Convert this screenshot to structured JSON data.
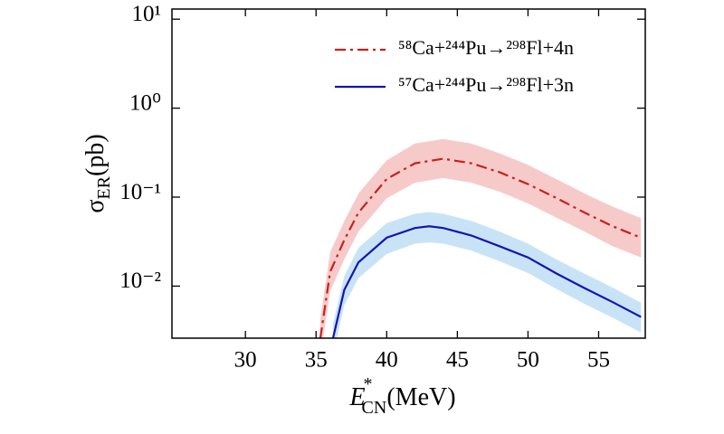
{
  "chart_data": {
    "type": "line",
    "log_y": true,
    "x_label": {
      "symbol": "E",
      "superscript": "*",
      "subscript": "CN",
      "unit": "(MeV)"
    },
    "y_label": {
      "symbol": "σ",
      "subscript": "ER",
      "unit": "(pb)"
    },
    "xlim": [
      24.8,
      58.3
    ],
    "xticks": [
      30,
      35,
      40,
      45,
      50,
      55
    ],
    "ylim": [
      0.0026,
      13
    ],
    "yticks": [
      {
        "value": 10,
        "label": "10¹"
      },
      {
        "value": 1,
        "label": "10⁰"
      },
      {
        "value": 0.1,
        "label": "10⁻¹"
      },
      {
        "value": 0.01,
        "label": "10⁻²"
      }
    ],
    "legend": "upper right",
    "series": [
      {
        "name": "⁵⁸Ca+²⁴⁴Pu→²⁹⁸Fl+4n",
        "color": "#c8201e",
        "band_color": "#f7caca",
        "linestyle": "dashdot",
        "x": [
          35.3,
          36,
          37,
          38,
          40,
          42,
          44,
          46,
          48,
          50,
          52,
          54,
          56,
          58
        ],
        "values": [
          0.0026,
          0.0145,
          0.033,
          0.067,
          0.16,
          0.24,
          0.27,
          0.24,
          0.19,
          0.14,
          0.098,
          0.067,
          0.047,
          0.035
        ],
        "band_upper": [
          0.0043,
          0.024,
          0.054,
          0.11,
          0.26,
          0.4,
          0.45,
          0.4,
          0.31,
          0.23,
          0.16,
          0.11,
          0.078,
          0.058
        ],
        "band_lower": [
          0.0016,
          0.0088,
          0.02,
          0.041,
          0.097,
          0.145,
          0.164,
          0.145,
          0.115,
          0.085,
          0.059,
          0.041,
          0.028,
          0.021
        ]
      },
      {
        "name": "⁵⁷Ca+²⁴⁴Pu→²⁹⁸Fl+3n",
        "color": "#1414b4",
        "band_color": "#c9e3f6",
        "linestyle": "solid",
        "x": [
          36.2,
          37,
          38,
          40,
          42,
          43,
          44,
          46,
          48,
          50,
          52,
          54,
          56,
          58
        ],
        "values": [
          0.0026,
          0.0091,
          0.0185,
          0.035,
          0.045,
          0.047,
          0.045,
          0.037,
          0.028,
          0.021,
          0.0139,
          0.0095,
          0.0066,
          0.0045
        ],
        "band_upper": [
          0.0038,
          0.013,
          0.027,
          0.051,
          0.065,
          0.068,
          0.065,
          0.054,
          0.041,
          0.03,
          0.02,
          0.0138,
          0.0096,
          0.0065
        ],
        "band_lower": [
          0.0017,
          0.0061,
          0.0123,
          0.023,
          0.03,
          0.031,
          0.03,
          0.025,
          0.019,
          0.014,
          0.0093,
          0.0063,
          0.0044,
          0.003
        ]
      }
    ]
  }
}
